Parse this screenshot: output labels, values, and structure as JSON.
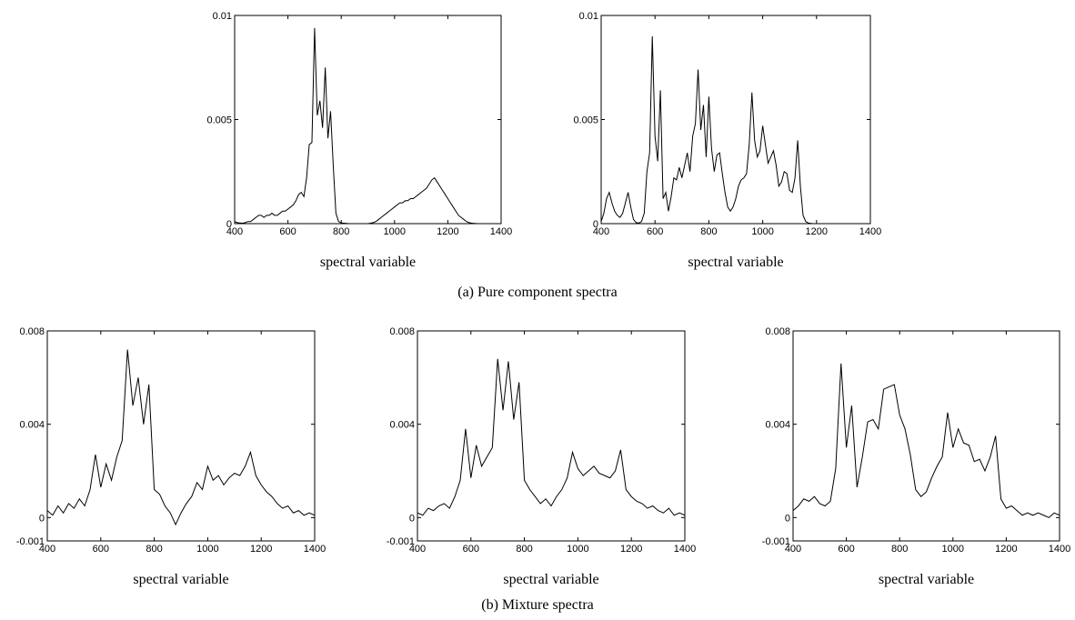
{
  "captions": [
    "(a) Pure component spectra",
    "(b) Mixture spectra"
  ],
  "chart_data": [
    {
      "type": "line",
      "xlabel": "spectral variable",
      "color": "#000000",
      "xlim": [
        400,
        1400
      ],
      "xticks": [
        400,
        600,
        800,
        1000,
        1200,
        1400
      ],
      "ylim": [
        0,
        0.01
      ],
      "yticks": [
        0,
        0.005,
        0.01
      ],
      "x": [
        400,
        410,
        420,
        430,
        440,
        450,
        460,
        470,
        480,
        490,
        500,
        510,
        520,
        530,
        540,
        550,
        560,
        570,
        580,
        590,
        600,
        610,
        620,
        630,
        640,
        650,
        660,
        670,
        680,
        690,
        700,
        710,
        720,
        730,
        740,
        750,
        760,
        770,
        780,
        790,
        800,
        810,
        820,
        830,
        840,
        850,
        860,
        870,
        880,
        890,
        900,
        910,
        920,
        930,
        940,
        950,
        960,
        970,
        980,
        990,
        1000,
        1010,
        1020,
        1030,
        1040,
        1050,
        1060,
        1070,
        1080,
        1090,
        1100,
        1110,
        1120,
        1130,
        1140,
        1150,
        1160,
        1170,
        1180,
        1190,
        1200,
        1210,
        1220,
        1230,
        1240,
        1250,
        1260,
        1270,
        1280,
        1290,
        1300,
        1310,
        1320,
        1330,
        1340,
        1350,
        1360,
        1370,
        1380,
        1390,
        1400
      ],
      "values": [
        0.0001,
        5e-05,
        3e-05,
        2e-05,
        5e-05,
        0.0001,
        0.0001,
        0.0002,
        0.0003,
        0.0004,
        0.0004,
        0.0003,
        0.0004,
        0.0004,
        0.0005,
        0.0004,
        0.0004,
        0.0005,
        0.0006,
        0.0006,
        0.0007,
        0.0008,
        0.0009,
        0.0011,
        0.0014,
        0.0015,
        0.0013,
        0.0022,
        0.0038,
        0.0039,
        0.0094,
        0.0052,
        0.0059,
        0.0046,
        0.0075,
        0.0041,
        0.0054,
        0.0028,
        0.0005,
        0.0001,
        3e-05,
        2e-05,
        1e-05,
        0,
        0,
        0,
        0,
        0,
        0,
        0,
        0,
        2e-05,
        5e-05,
        0.0001,
        0.0002,
        0.0003,
        0.0004,
        0.0005,
        0.0006,
        0.0007,
        0.0008,
        0.0009,
        0.001,
        0.001,
        0.0011,
        0.0011,
        0.0012,
        0.0012,
        0.0013,
        0.0014,
        0.0015,
        0.0016,
        0.0017,
        0.0019,
        0.0021,
        0.0022,
        0.002,
        0.0018,
        0.0016,
        0.0014,
        0.0012,
        0.001,
        0.0008,
        0.0006,
        0.0004,
        0.0003,
        0.0002,
        0.0001,
        5e-05,
        2e-05,
        1e-05,
        0,
        0,
        0,
        0,
        0,
        0,
        0,
        0,
        0,
        0
      ]
    },
    {
      "type": "line",
      "xlabel": "spectral variable",
      "color": "#000000",
      "xlim": [
        400,
        1400
      ],
      "xticks": [
        400,
        600,
        800,
        1000,
        1200,
        1400
      ],
      "ylim": [
        0,
        0.01
      ],
      "yticks": [
        0,
        0.005,
        0.01
      ],
      "x": [
        400,
        410,
        420,
        430,
        440,
        450,
        460,
        470,
        480,
        490,
        500,
        510,
        520,
        530,
        540,
        550,
        560,
        570,
        580,
        590,
        600,
        610,
        620,
        630,
        640,
        650,
        660,
        670,
        680,
        690,
        700,
        710,
        720,
        730,
        740,
        750,
        760,
        770,
        780,
        790,
        800,
        810,
        820,
        830,
        840,
        850,
        860,
        870,
        880,
        890,
        900,
        910,
        920,
        930,
        940,
        950,
        960,
        970,
        980,
        990,
        1000,
        1010,
        1020,
        1030,
        1040,
        1050,
        1060,
        1070,
        1080,
        1090,
        1100,
        1110,
        1120,
        1130,
        1140,
        1150,
        1160,
        1170,
        1180,
        1190,
        1200,
        1210,
        1220,
        1230,
        1240,
        1250,
        1260,
        1270,
        1280,
        1290,
        1300,
        1310,
        1320,
        1330,
        1340,
        1350,
        1360,
        1370,
        1380,
        1390,
        1400
      ],
      "values": [
        0.0001,
        0.0005,
        0.0012,
        0.0015,
        0.001,
        0.0006,
        0.0004,
        0.0003,
        0.0005,
        0.001,
        0.0015,
        0.0008,
        0.0002,
        5e-05,
        3e-05,
        0.0001,
        0.0005,
        0.0025,
        0.0034,
        0.009,
        0.0042,
        0.003,
        0.0064,
        0.0012,
        0.0015,
        0.0006,
        0.0013,
        0.0022,
        0.0021,
        0.0027,
        0.0022,
        0.0028,
        0.0034,
        0.0025,
        0.0042,
        0.0048,
        0.0074,
        0.0045,
        0.0057,
        0.0032,
        0.0061,
        0.0036,
        0.0025,
        0.0033,
        0.0034,
        0.0024,
        0.0015,
        0.0008,
        0.0006,
        0.0008,
        0.0012,
        0.0018,
        0.0021,
        0.0022,
        0.0024,
        0.0038,
        0.0063,
        0.004,
        0.0032,
        0.0035,
        0.0047,
        0.0038,
        0.0029,
        0.0032,
        0.0035,
        0.0028,
        0.0018,
        0.002,
        0.0025,
        0.0024,
        0.0016,
        0.0015,
        0.0022,
        0.004,
        0.0018,
        0.0004,
        0.0001,
        3e-05,
        1e-05,
        0,
        0,
        0,
        0,
        0,
        0,
        0,
        0,
        0,
        0,
        0,
        0,
        0,
        0,
        0,
        0,
        0,
        0,
        0,
        0,
        0,
        0
      ]
    },
    {
      "type": "line",
      "xlabel": "spectral variable",
      "color": "#000000",
      "xlim": [
        400,
        1400
      ],
      "xticks": [
        400,
        600,
        800,
        1000,
        1200,
        1400
      ],
      "ylim": [
        -0.001,
        0.008
      ],
      "yticks": [
        -0.001,
        0,
        0.004,
        0.008
      ],
      "x": [
        400,
        420,
        440,
        460,
        480,
        500,
        520,
        540,
        560,
        580,
        600,
        620,
        640,
        660,
        680,
        700,
        720,
        740,
        760,
        780,
        800,
        820,
        840,
        860,
        880,
        900,
        920,
        940,
        960,
        980,
        1000,
        1020,
        1040,
        1060,
        1080,
        1100,
        1120,
        1140,
        1160,
        1180,
        1200,
        1220,
        1240,
        1260,
        1280,
        1300,
        1320,
        1340,
        1360,
        1380,
        1400
      ],
      "values": [
        0.0003,
        0.0001,
        0.0005,
        0.0002,
        0.0006,
        0.0004,
        0.0008,
        0.0005,
        0.0012,
        0.0027,
        0.0013,
        0.0023,
        0.0016,
        0.0026,
        0.0033,
        0.0072,
        0.0048,
        0.006,
        0.004,
        0.0057,
        0.0012,
        0.001,
        0.0005,
        0.0002,
        -0.0003,
        0.0002,
        0.0006,
        0.0009,
        0.0015,
        0.0012,
        0.0022,
        0.0016,
        0.0018,
        0.0014,
        0.0017,
        0.0019,
        0.0018,
        0.0022,
        0.0028,
        0.0018,
        0.0014,
        0.0011,
        0.0009,
        0.0006,
        0.0004,
        0.0005,
        0.0002,
        0.0003,
        0.0001,
        0.0002,
        0.0001
      ]
    },
    {
      "type": "line",
      "xlabel": "spectral variable",
      "color": "#000000",
      "xlim": [
        400,
        1400
      ],
      "xticks": [
        400,
        600,
        800,
        1000,
        1200,
        1400
      ],
      "ylim": [
        -0.001,
        0.008
      ],
      "yticks": [
        -0.001,
        0,
        0.004,
        0.008
      ],
      "x": [
        400,
        420,
        440,
        460,
        480,
        500,
        520,
        540,
        560,
        580,
        600,
        620,
        640,
        660,
        680,
        700,
        720,
        740,
        760,
        780,
        800,
        820,
        840,
        860,
        880,
        900,
        920,
        940,
        960,
        980,
        1000,
        1020,
        1040,
        1060,
        1080,
        1100,
        1120,
        1140,
        1160,
        1180,
        1200,
        1220,
        1240,
        1260,
        1280,
        1300,
        1320,
        1340,
        1360,
        1380,
        1400
      ],
      "values": [
        0.0002,
        0.0001,
        0.0004,
        0.0003,
        0.0005,
        0.0006,
        0.0004,
        0.0009,
        0.0016,
        0.0038,
        0.0017,
        0.0031,
        0.0022,
        0.0026,
        0.003,
        0.0068,
        0.0046,
        0.0067,
        0.0042,
        0.0058,
        0.0016,
        0.0012,
        0.0009,
        0.0006,
        0.0008,
        0.0005,
        0.0009,
        0.0012,
        0.0017,
        0.0028,
        0.0021,
        0.0018,
        0.002,
        0.0022,
        0.0019,
        0.0018,
        0.0017,
        0.002,
        0.0029,
        0.0012,
        0.0009,
        0.0007,
        0.0006,
        0.0004,
        0.0005,
        0.0003,
        0.0002,
        0.0004,
        0.0001,
        0.0002,
        0.0001
      ]
    },
    {
      "type": "line",
      "xlabel": "spectral variable",
      "color": "#000000",
      "xlim": [
        400,
        1400
      ],
      "xticks": [
        400,
        600,
        800,
        1000,
        1200,
        1400
      ],
      "ylim": [
        -0.001,
        0.008
      ],
      "yticks": [
        -0.001,
        0,
        0.004,
        0.008
      ],
      "x": [
        400,
        420,
        440,
        460,
        480,
        500,
        520,
        540,
        560,
        580,
        600,
        620,
        640,
        660,
        680,
        700,
        720,
        740,
        760,
        780,
        800,
        820,
        840,
        860,
        880,
        900,
        920,
        940,
        960,
        980,
        1000,
        1020,
        1040,
        1060,
        1080,
        1100,
        1120,
        1140,
        1160,
        1180,
        1200,
        1220,
        1240,
        1260,
        1280,
        1300,
        1320,
        1340,
        1360,
        1380,
        1400
      ],
      "values": [
        0.0003,
        0.0005,
        0.0008,
        0.0007,
        0.0009,
        0.0006,
        0.0005,
        0.0007,
        0.0021,
        0.0066,
        0.003,
        0.0048,
        0.0013,
        0.0026,
        0.0041,
        0.0042,
        0.0038,
        0.0055,
        0.0056,
        0.0057,
        0.0044,
        0.0038,
        0.0027,
        0.0012,
        0.0009,
        0.0011,
        0.0017,
        0.0022,
        0.0026,
        0.0045,
        0.003,
        0.0038,
        0.0032,
        0.0031,
        0.0024,
        0.0025,
        0.002,
        0.0026,
        0.0035,
        0.0008,
        0.0004,
        0.0005,
        0.0003,
        0.0001,
        0.0002,
        0.0001,
        0.0002,
        0.0001,
        0,
        0.0002,
        0.0001
      ]
    }
  ]
}
